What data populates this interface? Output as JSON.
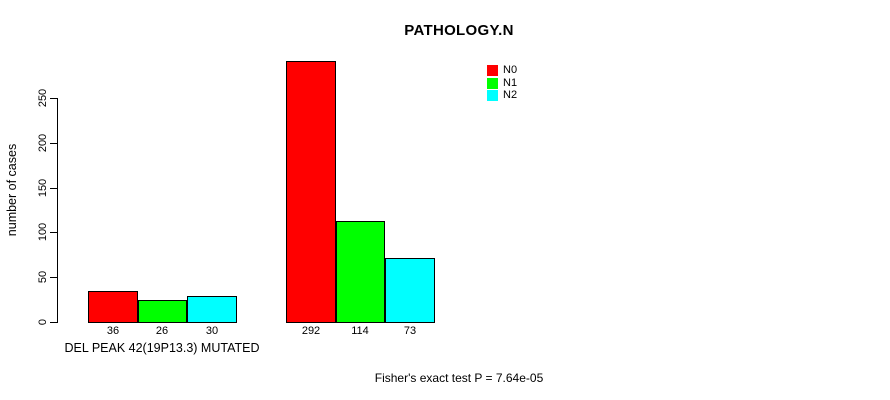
{
  "chart_data": {
    "type": "bar",
    "title": "PATHOLOGY.N",
    "ylabel": "number of cases",
    "xlabel": "",
    "ylim": [
      0,
      250
    ],
    "yticks": [
      0,
      50,
      100,
      150,
      200,
      250
    ],
    "grid": false,
    "legend_position": "top-right",
    "categories": [
      "DEL PEAK 42(19P13.3) MUTATED",
      ""
    ],
    "group_axis_label": "DEL PEAK 42(19P13.3) MUTATED",
    "series": [
      {
        "name": "N0",
        "color": "#FF0000",
        "values": [
          36,
          292
        ]
      },
      {
        "name": "N1",
        "color": "#00FF00",
        "values": [
          26,
          114
        ]
      },
      {
        "name": "N2",
        "color": "#00FFFF",
        "values": [
          30,
          73
        ]
      }
    ],
    "bar_value_labels": [
      [
        "36",
        "26",
        "30"
      ],
      [
        "292",
        "114",
        "73"
      ]
    ],
    "annotation": "Fisher's exact test P = 7.64e-05"
  }
}
